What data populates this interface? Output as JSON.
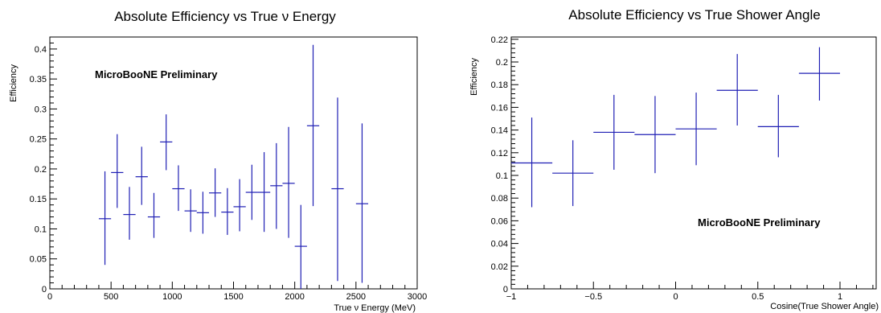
{
  "chart_data": [
    {
      "type": "scatter",
      "title": "Absolute Efficiency vs True ν Energy",
      "xlabel": "True ν Energy (MeV)",
      "ylabel": "Efficiency",
      "xlim": [
        0,
        3000
      ],
      "ylim": [
        0,
        0.42
      ],
      "xticks": [
        0,
        500,
        1000,
        1500,
        2000,
        2500,
        3000
      ],
      "xtick_labels": [
        "0",
        "500",
        "1000",
        "1500",
        "2000",
        "2500",
        "3000"
      ],
      "yticks": [
        0,
        0.05,
        0.1,
        0.15,
        0.2,
        0.25,
        0.3,
        0.35,
        0.4
      ],
      "ytick_labels": [
        "0",
        "0.05",
        "0.1",
        "0.15",
        "0.2",
        "0.25",
        "0.3",
        "0.35",
        "0.4"
      ],
      "annotation": "MicroBooNE Preliminary",
      "grid": false,
      "points": [
        {
          "x": 450,
          "xerr": 50,
          "y": 0.117,
          "ylow": 0.04,
          "yhigh": 0.196
        },
        {
          "x": 550,
          "xerr": 50,
          "y": 0.194,
          "ylow": 0.135,
          "yhigh": 0.258
        },
        {
          "x": 650,
          "xerr": 50,
          "y": 0.124,
          "ylow": 0.082,
          "yhigh": 0.17
        },
        {
          "x": 750,
          "xerr": 50,
          "y": 0.187,
          "ylow": 0.14,
          "yhigh": 0.237
        },
        {
          "x": 850,
          "xerr": 50,
          "y": 0.12,
          "ylow": 0.085,
          "yhigh": 0.16
        },
        {
          "x": 950,
          "xerr": 50,
          "y": 0.245,
          "ylow": 0.198,
          "yhigh": 0.291
        },
        {
          "x": 1050,
          "xerr": 50,
          "y": 0.167,
          "ylow": 0.13,
          "yhigh": 0.206
        },
        {
          "x": 1150,
          "xerr": 50,
          "y": 0.13,
          "ylow": 0.095,
          "yhigh": 0.166
        },
        {
          "x": 1250,
          "xerr": 50,
          "y": 0.127,
          "ylow": 0.092,
          "yhigh": 0.162
        },
        {
          "x": 1350,
          "xerr": 50,
          "y": 0.16,
          "ylow": 0.12,
          "yhigh": 0.201
        },
        {
          "x": 1450,
          "xerr": 50,
          "y": 0.128,
          "ylow": 0.09,
          "yhigh": 0.168
        },
        {
          "x": 1550,
          "xerr": 50,
          "y": 0.137,
          "ylow": 0.096,
          "yhigh": 0.183
        },
        {
          "x": 1650,
          "xerr": 50,
          "y": 0.161,
          "ylow": 0.115,
          "yhigh": 0.207
        },
        {
          "x": 1750,
          "xerr": 50,
          "y": 0.161,
          "ylow": 0.095,
          "yhigh": 0.228
        },
        {
          "x": 1850,
          "xerr": 50,
          "y": 0.172,
          "ylow": 0.1,
          "yhigh": 0.243
        },
        {
          "x": 1950,
          "xerr": 50,
          "y": 0.176,
          "ylow": 0.085,
          "yhigh": 0.27
        },
        {
          "x": 2050,
          "xerr": 50,
          "y": 0.071,
          "ylow": 0.0,
          "yhigh": 0.14
        },
        {
          "x": 2150,
          "xerr": 50,
          "y": 0.272,
          "ylow": 0.138,
          "yhigh": 0.407
        },
        {
          "x": 2350,
          "xerr": 50,
          "y": 0.167,
          "ylow": 0.013,
          "yhigh": 0.319
        },
        {
          "x": 2550,
          "xerr": 50,
          "y": 0.142,
          "ylow": 0.01,
          "yhigh": 0.276
        }
      ]
    },
    {
      "type": "scatter",
      "title": "Absolute Efficiency vs True Shower Angle",
      "xlabel": "Cosine(True Shower Angle)",
      "ylabel": "Efficiency",
      "xlim": [
        -1,
        1.22
      ],
      "ylim": [
        0,
        0.222
      ],
      "xticks": [
        -1,
        -0.5,
        0,
        0.5,
        1
      ],
      "xtick_labels": [
        "−1",
        "−0.5",
        "0",
        "0.5",
        "1"
      ],
      "yticks": [
        0,
        0.02,
        0.04,
        0.06,
        0.08,
        0.1,
        0.12,
        0.14,
        0.16,
        0.18,
        0.2,
        0.22
      ],
      "ytick_labels": [
        "0",
        "0.02",
        "0.04",
        "0.06",
        "0.08",
        "0.1",
        "0.12",
        "0.14",
        "0.16",
        "0.18",
        "0.2",
        "0.22"
      ],
      "annotation": "MicroBooNE Preliminary",
      "grid": false,
      "points": [
        {
          "x": -0.875,
          "xerr": 0.125,
          "y": 0.111,
          "ylow": 0.072,
          "yhigh": 0.151
        },
        {
          "x": -0.625,
          "xerr": 0.125,
          "y": 0.102,
          "ylow": 0.073,
          "yhigh": 0.131
        },
        {
          "x": -0.375,
          "xerr": 0.125,
          "y": 0.138,
          "ylow": 0.105,
          "yhigh": 0.171
        },
        {
          "x": -0.125,
          "xerr": 0.125,
          "y": 0.136,
          "ylow": 0.102,
          "yhigh": 0.17
        },
        {
          "x": 0.125,
          "xerr": 0.125,
          "y": 0.141,
          "ylow": 0.109,
          "yhigh": 0.173
        },
        {
          "x": 0.375,
          "xerr": 0.125,
          "y": 0.175,
          "ylow": 0.144,
          "yhigh": 0.207
        },
        {
          "x": 0.625,
          "xerr": 0.125,
          "y": 0.143,
          "ylow": 0.116,
          "yhigh": 0.171
        },
        {
          "x": 0.875,
          "xerr": 0.125,
          "y": 0.19,
          "ylow": 0.166,
          "yhigh": 0.213
        }
      ]
    }
  ],
  "colors": {
    "marker": "#1f1fb4",
    "axis": "#000000"
  }
}
